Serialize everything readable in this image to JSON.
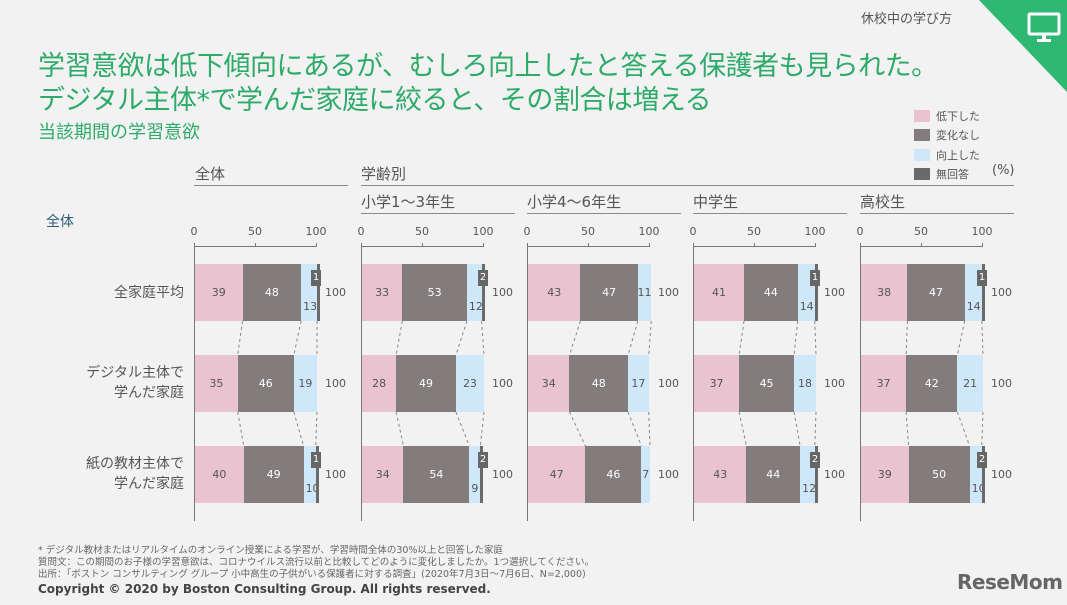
{
  "section_tag": "休校中の学び方",
  "corner_icon": "monitor-icon",
  "title_line1": "学習意欲は低下傾向にあるが、むしろ向上したと答える保護者も見られた。",
  "title_line2": "デジタル主体*で学んだ家庭に絞ると、その割合は増える",
  "subtitle": "当該期間の学習意欲",
  "legend": [
    {
      "label": "低下した",
      "color": "#e9c3cf"
    },
    {
      "label": "変化なし",
      "color": "#827c7c"
    },
    {
      "label": "向上した",
      "color": "#cfe8f9"
    },
    {
      "label": "無回答",
      "color": "#6a6a6a"
    }
  ],
  "unit": "(%)",
  "group_headers": {
    "overall": "全体",
    "by_age": "学齢別"
  },
  "row_group_label": "全体",
  "row_labels": [
    "全家庭平均",
    "デジタル主体で\n学んだ家庭",
    "紙の教材主体で\n学んだ家庭"
  ],
  "row_labels_lines": [
    [
      "全家庭平均"
    ],
    [
      "デジタル主体で",
      "学んだ家庭"
    ],
    [
      "紙の教材主体で",
      "学んだ家庭"
    ]
  ],
  "axis_ticks": [
    "0",
    "50",
    "100"
  ],
  "chart_data": {
    "type": "bar",
    "orientation": "horizontal-stacked-100",
    "title": "当該期間の学習意欲",
    "xlabel": "(%)",
    "xlim": [
      0,
      100
    ],
    "categories": [
      "全家庭平均",
      "デジタル主体で学んだ家庭",
      "紙の教材主体で学んだ家庭"
    ],
    "series_names": [
      "低下した",
      "変化なし",
      "向上した",
      "無回答"
    ],
    "panels": [
      {
        "name": "全体",
        "rows": [
          [
            39,
            48,
            13,
            1
          ],
          [
            35,
            46,
            19,
            0
          ],
          [
            40,
            49,
            10,
            1
          ]
        ],
        "totals": [
          100,
          100,
          100
        ]
      },
      {
        "name": "小学1〜3年生",
        "rows": [
          [
            33,
            53,
            12,
            2
          ],
          [
            28,
            49,
            23,
            0
          ],
          [
            34,
            54,
            9,
            2
          ]
        ],
        "totals": [
          100,
          100,
          100
        ]
      },
      {
        "name": "小学4〜6年生",
        "rows": [
          [
            43,
            47,
            11,
            0
          ],
          [
            34,
            48,
            17,
            0
          ],
          [
            47,
            46,
            7,
            0
          ]
        ],
        "totals": [
          100,
          100,
          100
        ]
      },
      {
        "name": "中学生",
        "rows": [
          [
            41,
            44,
            14,
            1
          ],
          [
            37,
            45,
            18,
            0
          ],
          [
            43,
            44,
            12,
            2
          ]
        ],
        "totals": [
          100,
          100,
          100
        ]
      },
      {
        "name": "高校生",
        "rows": [
          [
            38,
            47,
            14,
            1
          ],
          [
            37,
            42,
            21,
            0
          ],
          [
            39,
            50,
            10,
            2
          ]
        ],
        "totals": [
          100,
          100,
          100
        ]
      }
    ]
  },
  "footnotes": [
    "* デジタル教材またはリアルタイムのオンライン授業による学習が、学習時間全体の30%以上と回答した家庭",
    "質問文：この期間のお子様の学習意欲は、コロナウイルス流行以前と比較してどのように変化しましたか。1つ選択してください。",
    "出所：「ボストン コンサルティング グループ 小中高生の子供がいる保護者に対する調査」(2020年7月3日〜7月6日、N=2,000)"
  ],
  "copyright": "Copyright © 2020 by Boston Consulting Group. All rights reserved.",
  "logo": "ReseMom"
}
